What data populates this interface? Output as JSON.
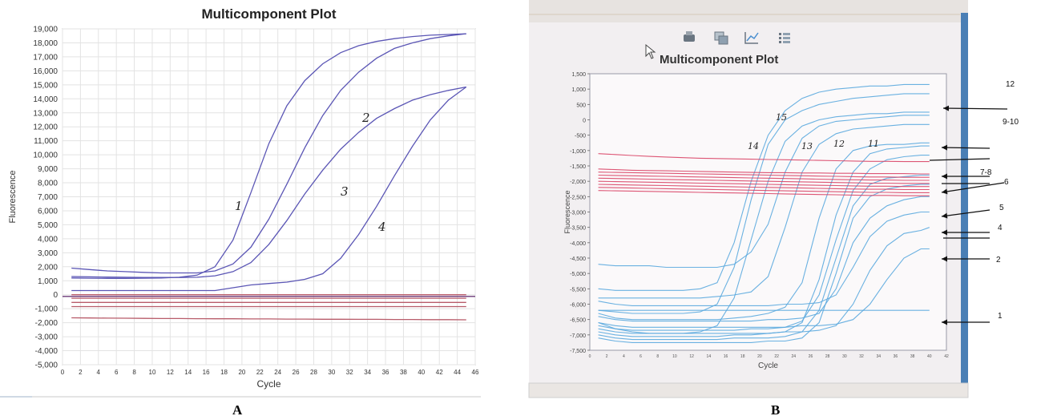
{
  "figure_labels": {
    "a": "A",
    "b": "B"
  },
  "panel_b_toolbar": [
    "printer-icon",
    "copy-image-icon",
    "chart-settings-icon",
    "legend-list-icon"
  ],
  "colors": {
    "amplification": "#5b56b5",
    "reference": "#b85c6a",
    "b_curves": "#5aa9de",
    "b_reference": "#d94466",
    "grid": "#e3e3e3",
    "b_background": "#f2eff1"
  },
  "chart_data": [
    {
      "type": "line",
      "title": "Multicomponent Plot",
      "xlabel": "Cycle",
      "ylabel": "Fluorescence",
      "xlim": [
        0,
        46
      ],
      "ylim": [
        -5000,
        19000
      ],
      "x_ticks": [
        "0",
        "2",
        "4",
        "6",
        "8",
        "10",
        "12",
        "14",
        "16",
        "18",
        "20",
        "22",
        "24",
        "26",
        "28",
        "30",
        "32",
        "34",
        "36",
        "38",
        "40",
        "42",
        "44",
        "46"
      ],
      "y_ticks": [
        "19,000",
        "18,000",
        "17,000",
        "16,000",
        "15,000",
        "14,000",
        "13,000",
        "12,000",
        "11,000",
        "10,000",
        "9,000",
        "8,000",
        "7,000",
        "6,000",
        "5,000",
        "4,000",
        "3,000",
        "2,000",
        "1,000",
        "0",
        "-1,000",
        "-2,000",
        "-3,000",
        "-4,000",
        "-5,000"
      ],
      "grid": true,
      "x": [
        1,
        3,
        5,
        7,
        9,
        11,
        13,
        15,
        17,
        19,
        21,
        23,
        25,
        27,
        29,
        31,
        33,
        35,
        37,
        39,
        41,
        43,
        45
      ],
      "series": [
        {
          "label": "1",
          "values": [
            1200,
            1180,
            1170,
            1170,
            1180,
            1200,
            1250,
            1400,
            2000,
            3900,
            7300,
            10800,
            13500,
            15300,
            16500,
            17300,
            17800,
            18100,
            18300,
            18450,
            18550,
            18600,
            18650
          ]
        },
        {
          "label": "2",
          "values": [
            1900,
            1800,
            1700,
            1650,
            1600,
            1560,
            1560,
            1560,
            1700,
            2200,
            3400,
            5400,
            7900,
            10500,
            12800,
            14600,
            15900,
            16900,
            17600,
            18000,
            18300,
            18500,
            18650
          ]
        },
        {
          "label": "3",
          "values": [
            1300,
            1280,
            1260,
            1250,
            1240,
            1230,
            1230,
            1250,
            1350,
            1650,
            2300,
            3600,
            5300,
            7200,
            8900,
            10400,
            11600,
            12600,
            13300,
            13900,
            14300,
            14600,
            14850
          ]
        },
        {
          "label": "4",
          "values": [
            300,
            300,
            300,
            300,
            300,
            300,
            300,
            300,
            300,
            500,
            700,
            800,
            900,
            1100,
            1500,
            2600,
            4300,
            6300,
            8500,
            10600,
            12500,
            13900,
            14850
          ]
        },
        {
          "values": [
            0,
            0,
            0,
            0,
            0,
            0,
            0,
            0,
            0,
            0,
            0,
            0,
            0,
            0,
            0,
            0,
            0,
            0,
            0,
            0,
            0,
            0,
            0
          ]
        },
        {
          "values": [
            -250,
            -250,
            -250,
            -250,
            -250,
            -250,
            -250,
            -250,
            -250,
            -250,
            -250,
            -250,
            -250,
            -250,
            -250,
            -250,
            -250,
            -250,
            -250,
            -250,
            -250,
            -250,
            -250
          ]
        },
        {
          "values": [
            -550,
            -550,
            -550,
            -550,
            -550,
            -550,
            -550,
            -550,
            -550,
            -550,
            -550,
            -550,
            -550,
            -550,
            -550,
            -550,
            -550,
            -550,
            -550,
            -550,
            -550,
            -550,
            -550
          ]
        },
        {
          "values": [
            -850,
            -850,
            -850,
            -850,
            -850,
            -850,
            -850,
            -850,
            -850,
            -850,
            -850,
            -850,
            -850,
            -850,
            -850,
            -850,
            -850,
            -850,
            -850,
            -850,
            -850,
            -850,
            -850
          ]
        },
        {
          "values": [
            -1650,
            -1660,
            -1670,
            -1680,
            -1690,
            -1700,
            -1700,
            -1710,
            -1720,
            -1720,
            -1730,
            -1730,
            -1740,
            -1740,
            -1750,
            -1750,
            -1760,
            -1760,
            -1770,
            -1770,
            -1780,
            -1780,
            -1790
          ]
        }
      ],
      "annotations": [
        "1",
        "2",
        "3",
        "4"
      ]
    },
    {
      "type": "line",
      "title": "Multicomponent Plot",
      "xlabel": "Cycle",
      "ylabel": "Fluorescence",
      "xlim": [
        0,
        42
      ],
      "ylim": [
        -7500,
        1500
      ],
      "x_ticks": [
        "0",
        "2",
        "4",
        "6",
        "8",
        "10",
        "12",
        "14",
        "16",
        "18",
        "20",
        "22",
        "24",
        "26",
        "28",
        "30",
        "32",
        "34",
        "36",
        "38",
        "40",
        "42"
      ],
      "y_ticks": [
        "1,500",
        "1,000",
        "500",
        "0",
        "-500",
        "-1,000",
        "-1,500",
        "-2,000",
        "-2,500",
        "-3,000",
        "-3,500",
        "-4,000",
        "-4,500",
        "-5,000",
        "-5,500",
        "-6,000",
        "-6,500",
        "-7,000",
        "-7,500"
      ],
      "grid": false,
      "x": [
        1,
        3,
        5,
        7,
        9,
        11,
        13,
        15,
        17,
        19,
        21,
        23,
        25,
        27,
        29,
        31,
        33,
        35,
        37,
        39,
        40
      ],
      "series": [
        {
          "values": [
            -5500,
            -5550,
            -5550,
            -5550,
            -5550,
            -5550,
            -5500,
            -5300,
            -4000,
            -2000,
            -500,
            300,
            700,
            900,
            1000,
            1050,
            1100,
            1100,
            1150,
            1150,
            1150
          ]
        },
        {
          "values": [
            -6200,
            -6250,
            -6300,
            -6300,
            -6300,
            -6300,
            -6250,
            -6000,
            -4800,
            -2600,
            -800,
            0,
            300,
            500,
            600,
            700,
            750,
            800,
            850,
            850,
            850
          ]
        },
        {
          "values": [
            -6600,
            -6800,
            -6900,
            -6950,
            -6950,
            -6950,
            -6900,
            -6700,
            -5800,
            -3900,
            -2000,
            -700,
            -200,
            0,
            100,
            150,
            200,
            200,
            250,
            250,
            250
          ]
        },
        {
          "values": [
            -4700,
            -4750,
            -4750,
            -4750,
            -4800,
            -4800,
            -4800,
            -4800,
            -4700,
            -4300,
            -3400,
            -1700,
            -600,
            -200,
            -50,
            0,
            50,
            100,
            150,
            150,
            150
          ]
        },
        {
          "values": [
            -5800,
            -5800,
            -5800,
            -5800,
            -5800,
            -5800,
            -5800,
            -5750,
            -5700,
            -5600,
            -5100,
            -3500,
            -1700,
            -800,
            -450,
            -300,
            -250,
            -200,
            -150,
            -150,
            -150
          ]
        },
        {
          "values": [
            -6300,
            -6450,
            -6500,
            -6500,
            -6500,
            -6500,
            -6500,
            -6500,
            -6450,
            -6400,
            -6300,
            -6100,
            -5300,
            -3200,
            -1600,
            -1000,
            -850,
            -800,
            -800,
            -750,
            -750
          ]
        },
        {
          "values": [
            -6900,
            -7000,
            -7050,
            -7050,
            -7050,
            -7050,
            -7050,
            -7050,
            -7000,
            -7000,
            -6950,
            -6900,
            -6600,
            -5200,
            -3100,
            -1700,
            -1100,
            -950,
            -900,
            -850,
            -850
          ]
        },
        {
          "values": [
            -6700,
            -6800,
            -6850,
            -6850,
            -6850,
            -6850,
            -6850,
            -6850,
            -6850,
            -6800,
            -6800,
            -6750,
            -6550,
            -5700,
            -3900,
            -2300,
            -1600,
            -1300,
            -1200,
            -1150,
            -1150
          ]
        },
        {
          "values": [
            -7000,
            -7100,
            -7150,
            -7150,
            -7150,
            -7150,
            -7150,
            -7150,
            -7100,
            -7100,
            -7100,
            -7050,
            -6900,
            -6200,
            -4500,
            -2800,
            -2100,
            -1900,
            -1850,
            -1800,
            -1800
          ]
        },
        {
          "values": [
            -7100,
            -7200,
            -7250,
            -7250,
            -7250,
            -7250,
            -7250,
            -7250,
            -7250,
            -7250,
            -7200,
            -7200,
            -7100,
            -6600,
            -5000,
            -3200,
            -2500,
            -2250,
            -2150,
            -2100,
            -2100
          ]
        },
        {
          "values": [
            -6400,
            -6500,
            -6550,
            -6550,
            -6550,
            -6550,
            -6550,
            -6550,
            -6550,
            -6550,
            -6500,
            -6500,
            -6450,
            -6300,
            -5500,
            -4000,
            -3200,
            -2800,
            -2600,
            -2500,
            -2500
          ]
        },
        {
          "values": [
            -5900,
            -6000,
            -6050,
            -6050,
            -6050,
            -6050,
            -6050,
            -6050,
            -6050,
            -6050,
            -6050,
            -6000,
            -6000,
            -5950,
            -5700,
            -4800,
            -3800,
            -3300,
            -3100,
            -3000,
            -3000
          ]
        },
        {
          "values": [
            -6800,
            -6900,
            -6950,
            -6950,
            -6950,
            -6950,
            -6950,
            -6950,
            -6950,
            -6950,
            -6950,
            -6900,
            -6900,
            -6850,
            -6700,
            -6000,
            -4900,
            -4100,
            -3700,
            -3600,
            -3500
          ]
        },
        {
          "values": [
            -6600,
            -6700,
            -6750,
            -6750,
            -6750,
            -6750,
            -6750,
            -6750,
            -6750,
            -6750,
            -6750,
            -6750,
            -6700,
            -6700,
            -6650,
            -6500,
            -6000,
            -5200,
            -4500,
            -4200,
            -4200
          ]
        },
        {
          "values": [
            -6200,
            -6200,
            -6200,
            -6200,
            -6200,
            -6200,
            -6200,
            -6200,
            -6200,
            -6200,
            -6200,
            -6200,
            -6200,
            -6200,
            -6200,
            -6200,
            -6200,
            -6200,
            -6200,
            -6200,
            -6200
          ]
        },
        {
          "values": [
            -1100,
            -1130,
            -1160,
            -1190,
            -1210,
            -1230,
            -1250,
            -1260,
            -1270,
            -1280,
            -1290,
            -1300,
            -1310,
            -1320,
            -1330,
            -1340,
            -1350,
            -1350,
            -1360,
            -1360,
            -1360
          ]
        },
        {
          "values": [
            -1600,
            -1620,
            -1640,
            -1650,
            -1660,
            -1670,
            -1680,
            -1690,
            -1700,
            -1710,
            -1720,
            -1720,
            -1730,
            -1730,
            -1740,
            -1740,
            -1750,
            -1750,
            -1750,
            -1760,
            -1760
          ]
        },
        {
          "values": [
            -1700,
            -1710,
            -1720,
            -1730,
            -1740,
            -1750,
            -1760,
            -1770,
            -1780,
            -1790,
            -1800,
            -1810,
            -1820,
            -1830,
            -1840,
            -1850,
            -1860,
            -1860,
            -1870,
            -1870,
            -1870
          ]
        },
        {
          "values": [
            -1800,
            -1810,
            -1820,
            -1830,
            -1840,
            -1850,
            -1860,
            -1870,
            -1880,
            -1890,
            -1900,
            -1910,
            -1920,
            -1930,
            -1940,
            -1950,
            -1960,
            -1960,
            -1970,
            -1970,
            -1970
          ]
        },
        {
          "values": [
            -1900,
            -1910,
            -1920,
            -1930,
            -1940,
            -1950,
            -1960,
            -1970,
            -1980,
            -1990,
            -2000,
            -2010,
            -2020,
            -2030,
            -2040,
            -2050,
            -2060,
            -2060,
            -2070,
            -2070,
            -2070
          ]
        },
        {
          "values": [
            -2000,
            -2010,
            -2020,
            -2030,
            -2040,
            -2050,
            -2060,
            -2070,
            -2080,
            -2090,
            -2100,
            -2110,
            -2120,
            -2130,
            -2140,
            -2150,
            -2160,
            -2160,
            -2170,
            -2170,
            -2170
          ]
        },
        {
          "values": [
            -2100,
            -2110,
            -2120,
            -2130,
            -2140,
            -2150,
            -2160,
            -2170,
            -2180,
            -2190,
            -2200,
            -2210,
            -2220,
            -2230,
            -2240,
            -2250,
            -2260,
            -2260,
            -2270,
            -2270,
            -2270
          ]
        },
        {
          "values": [
            -2200,
            -2210,
            -2220,
            -2230,
            -2240,
            -2250,
            -2260,
            -2270,
            -2280,
            -2290,
            -2300,
            -2310,
            -2320,
            -2330,
            -2340,
            -2350,
            -2360,
            -2360,
            -2370,
            -2370,
            -2370
          ]
        },
        {
          "values": [
            -2300,
            -2310,
            -2320,
            -2330,
            -2340,
            -2350,
            -2360,
            -2370,
            -2380,
            -2390,
            -2400,
            -2410,
            -2420,
            -2430,
            -2440,
            -2450,
            -2460,
            -2460,
            -2470,
            -2470,
            -2470
          ]
        }
      ],
      "curve_annotations": [
        "15",
        "14",
        "13",
        "12",
        "11"
      ],
      "arrow_annotations": [
        "12",
        "9-10",
        "7-8",
        "6",
        "5",
        "4",
        "2",
        "1"
      ]
    }
  ]
}
